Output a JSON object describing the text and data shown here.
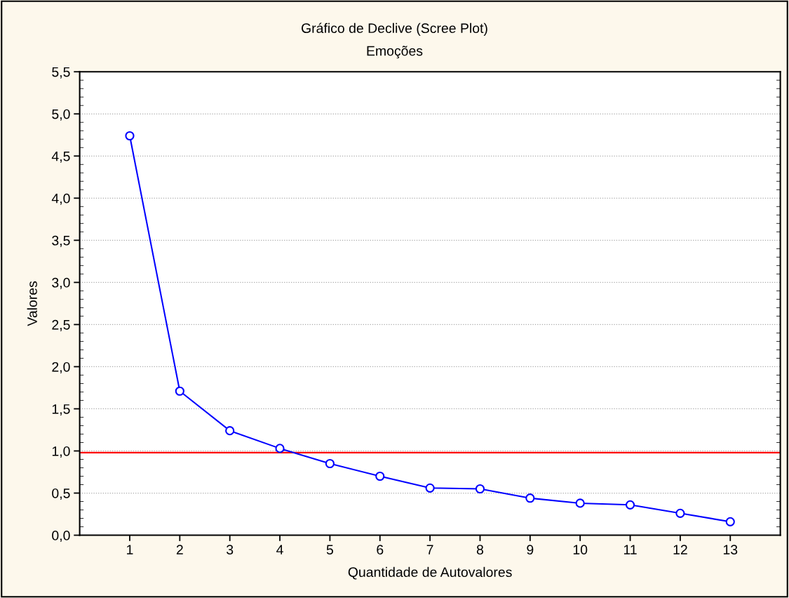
{
  "chart_data": {
    "type": "line",
    "title": "Gráfico de Declive (Scree Plot)",
    "subtitle": "Emoções",
    "xlabel": "Quantidade de Autovalores",
    "ylabel": "Valores",
    "x": [
      1,
      2,
      3,
      4,
      5,
      6,
      7,
      8,
      9,
      10,
      11,
      12,
      13
    ],
    "series": [
      {
        "color": "#0000ff",
        "values": [
          4.74,
          1.71,
          1.24,
          1.03,
          0.85,
          0.7,
          0.56,
          0.55,
          0.44,
          0.38,
          0.36,
          0.26,
          0.16
        ]
      }
    ],
    "xlim": [
      0,
      14
    ],
    "xticks": [
      1,
      2,
      3,
      4,
      5,
      6,
      7,
      8,
      9,
      10,
      11,
      12,
      13
    ],
    "ylim": [
      0,
      5.5
    ],
    "yticks": [
      {
        "value": 0,
        "label": "0,0"
      },
      {
        "value": 0.5,
        "label": "0,5"
      },
      {
        "value": 1,
        "label": "1,0"
      },
      {
        "value": 1.5,
        "label": "1,5"
      },
      {
        "value": 2,
        "label": "2,0"
      },
      {
        "value": 2.5,
        "label": "2,5"
      },
      {
        "value": 3,
        "label": "3,0"
      },
      {
        "value": 3.5,
        "label": "3,5"
      },
      {
        "value": 4,
        "label": "4,0"
      },
      {
        "value": 4.5,
        "label": "4,5"
      },
      {
        "value": 5,
        "label": "5,0"
      },
      {
        "value": 5.5,
        "label": "5,5"
      }
    ],
    "ref_lines": [
      {
        "axis": "y",
        "value": 0.98,
        "color": "#ff0000"
      }
    ],
    "grid": "y",
    "marker": "circle",
    "line_style": "solid",
    "legend": false
  }
}
